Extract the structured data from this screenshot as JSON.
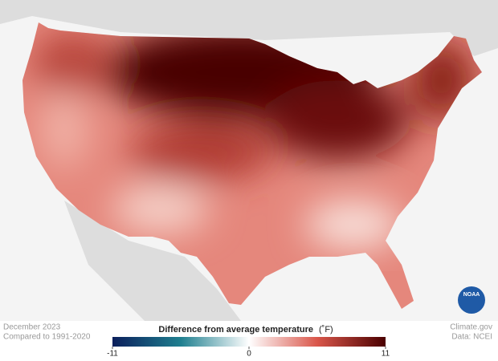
{
  "map": {
    "date": "December 2023",
    "baseline": "Compared to 1991-2020",
    "credit": "Climate.gov",
    "source": "Data: NCEI",
    "logo": "NOAA"
  },
  "legend": {
    "title": "Difference from average temperature",
    "unit": "(˚F)",
    "range": [
      -11,
      11
    ],
    "ticks": [
      -11,
      0,
      11
    ],
    "colors": [
      "#0b1f5c",
      "#1f7f8f",
      "#ffffff",
      "#d9564a",
      "#4a0000"
    ]
  }
}
